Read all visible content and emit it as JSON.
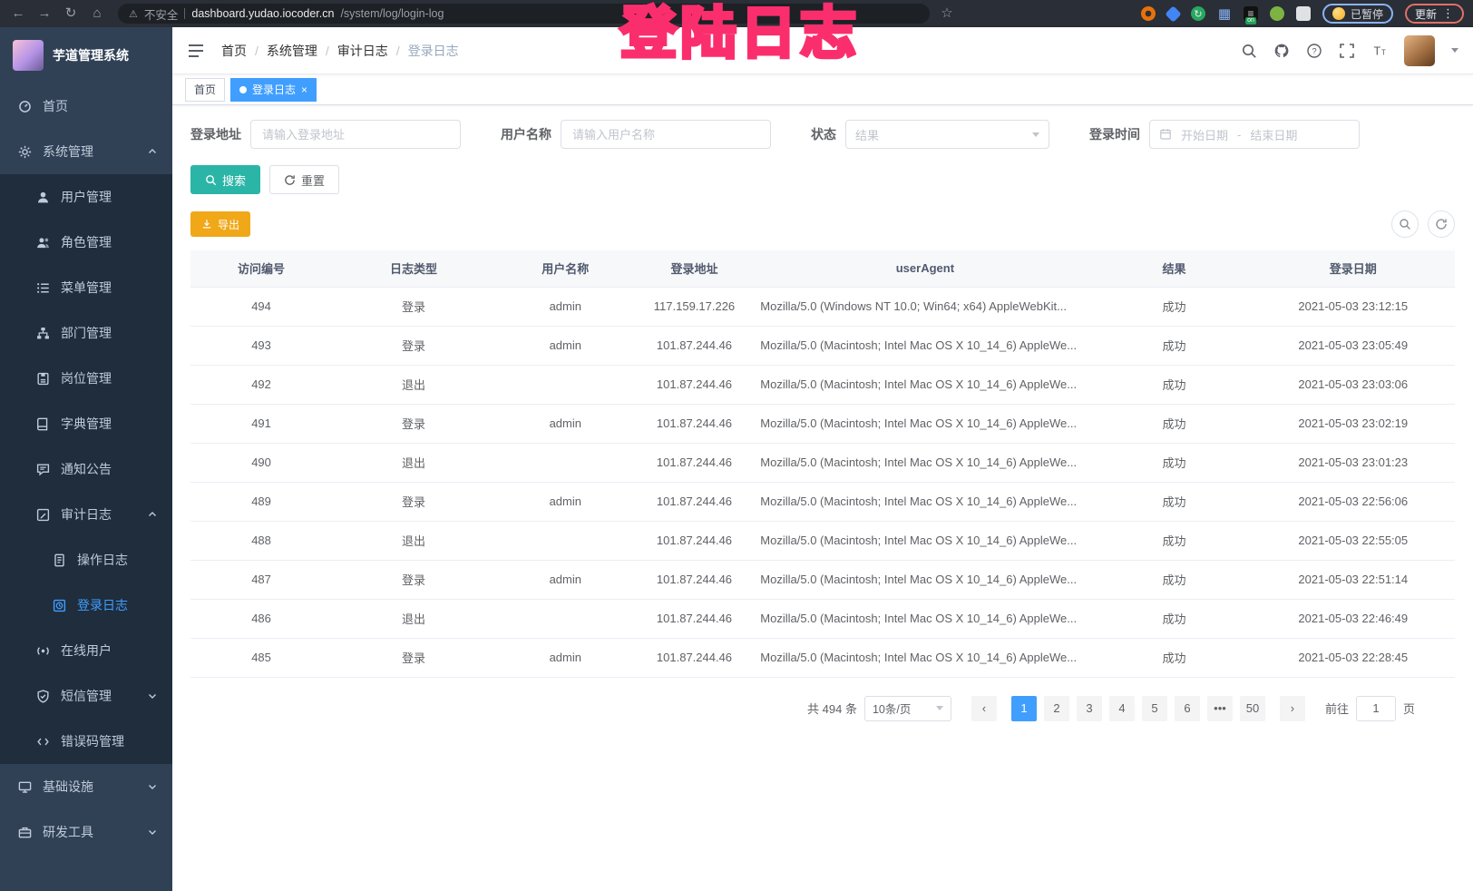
{
  "browser": {
    "security_label": "不安全",
    "url_host": "dashboard.yudao.iocoder.cn",
    "url_path": "/system/log/login-log",
    "extension_badge": "on",
    "profile_status": "已暂停",
    "update_label": "更新"
  },
  "annotation": "登陆日志",
  "sidebar": {
    "app_title": "芋道管理系统",
    "menu": {
      "home": "首页",
      "system": "系统管理",
      "user": "用户管理",
      "role": "角色管理",
      "menu": "菜单管理",
      "dept": "部门管理",
      "post": "岗位管理",
      "dict": "字典管理",
      "notice": "通知公告",
      "audit": "审计日志",
      "operation_log": "操作日志",
      "login_log": "登录日志",
      "online_users": "在线用户",
      "sms": "短信管理",
      "error_code": "错误码管理",
      "infrastructure": "基础设施",
      "dev_tools": "研发工具"
    }
  },
  "header": {
    "breadcrumb": [
      "首页",
      "系统管理",
      "审计日志",
      "登录日志"
    ]
  },
  "tags": {
    "home": "首页",
    "active": "登录日志"
  },
  "filters": {
    "login_address": {
      "label": "登录地址",
      "placeholder": "请输入登录地址"
    },
    "username": {
      "label": "用户名称",
      "placeholder": "请输入用户名称"
    },
    "status": {
      "label": "状态",
      "placeholder": "结果"
    },
    "login_time": {
      "label": "登录时间",
      "start_placeholder": "开始日期",
      "separator": "-",
      "end_placeholder": "结束日期"
    },
    "search_label": "搜索",
    "reset_label": "重置"
  },
  "toolbar": {
    "export_label": "导出"
  },
  "table": {
    "headers": [
      "访问编号",
      "日志类型",
      "用户名称",
      "登录地址",
      "userAgent",
      "结果",
      "登录日期"
    ],
    "rows": [
      {
        "id": "494",
        "type": "登录",
        "username": "admin",
        "ip": "117.159.17.226",
        "user_agent": "Mozilla/5.0 (Windows NT 10.0; Win64; x64) AppleWebKit...",
        "result": "成功",
        "date": "2021-05-03 23:12:15"
      },
      {
        "id": "493",
        "type": "登录",
        "username": "admin",
        "ip": "101.87.244.46",
        "user_agent": "Mozilla/5.0 (Macintosh; Intel Mac OS X 10_14_6) AppleWe...",
        "result": "成功",
        "date": "2021-05-03 23:05:49"
      },
      {
        "id": "492",
        "type": "退出",
        "username": "",
        "ip": "101.87.244.46",
        "user_agent": "Mozilla/5.0 (Macintosh; Intel Mac OS X 10_14_6) AppleWe...",
        "result": "成功",
        "date": "2021-05-03 23:03:06"
      },
      {
        "id": "491",
        "type": "登录",
        "username": "admin",
        "ip": "101.87.244.46",
        "user_agent": "Mozilla/5.0 (Macintosh; Intel Mac OS X 10_14_6) AppleWe...",
        "result": "成功",
        "date": "2021-05-03 23:02:19"
      },
      {
        "id": "490",
        "type": "退出",
        "username": "",
        "ip": "101.87.244.46",
        "user_agent": "Mozilla/5.0 (Macintosh; Intel Mac OS X 10_14_6) AppleWe...",
        "result": "成功",
        "date": "2021-05-03 23:01:23"
      },
      {
        "id": "489",
        "type": "登录",
        "username": "admin",
        "ip": "101.87.244.46",
        "user_agent": "Mozilla/5.0 (Macintosh; Intel Mac OS X 10_14_6) AppleWe...",
        "result": "成功",
        "date": "2021-05-03 22:56:06"
      },
      {
        "id": "488",
        "type": "退出",
        "username": "",
        "ip": "101.87.244.46",
        "user_agent": "Mozilla/5.0 (Macintosh; Intel Mac OS X 10_14_6) AppleWe...",
        "result": "成功",
        "date": "2021-05-03 22:55:05"
      },
      {
        "id": "487",
        "type": "登录",
        "username": "admin",
        "ip": "101.87.244.46",
        "user_agent": "Mozilla/5.0 (Macintosh; Intel Mac OS X 10_14_6) AppleWe...",
        "result": "成功",
        "date": "2021-05-03 22:51:14"
      },
      {
        "id": "486",
        "type": "退出",
        "username": "",
        "ip": "101.87.244.46",
        "user_agent": "Mozilla/5.0 (Macintosh; Intel Mac OS X 10_14_6) AppleWe...",
        "result": "成功",
        "date": "2021-05-03 22:46:49"
      },
      {
        "id": "485",
        "type": "登录",
        "username": "admin",
        "ip": "101.87.244.46",
        "user_agent": "Mozilla/5.0 (Macintosh; Intel Mac OS X 10_14_6) AppleWe...",
        "result": "成功",
        "date": "2021-05-03 22:28:45"
      }
    ]
  },
  "pagination": {
    "total_label": "共 494 条",
    "page_size": "10条/页",
    "pages": [
      "1",
      "2",
      "3",
      "4",
      "5",
      "6",
      "•••",
      "50"
    ],
    "active_page": "1",
    "prev_symbol": "‹",
    "next_symbol": "›",
    "goto_label": "前往",
    "goto_value": "1",
    "goto_unit": "页"
  },
  "colors": {
    "accent_blue": "#409EFF",
    "teal": "#2BB5A7",
    "amber": "#F0A818",
    "annotation_pink": "#FB2E6D",
    "sidebar_bg": "#304156",
    "submenu_bg": "#1F2D3D"
  }
}
